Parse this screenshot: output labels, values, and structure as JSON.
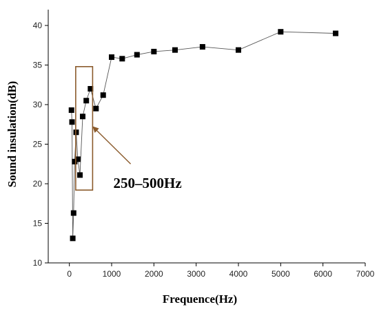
{
  "chart_data": {
    "type": "scatter",
    "title": "",
    "xlabel": "Frequence(Hz)",
    "ylabel": "Sound insulation(dB)",
    "xlim": [
      -500,
      7000
    ],
    "ylim": [
      10,
      42
    ],
    "xticks": [
      0,
      1000,
      2000,
      3000,
      4000,
      5000,
      6000,
      7000
    ],
    "yticks": [
      10,
      15,
      20,
      25,
      30,
      35,
      40
    ],
    "grid": false,
    "legend": "none",
    "series": [
      {
        "connected": true,
        "marker": "square",
        "color": "#000000",
        "x": [
          50,
          63,
          80,
          100,
          125,
          160,
          200,
          250,
          315,
          400,
          500,
          630,
          800,
          1000,
          1250,
          1600,
          2000,
          2500,
          3150,
          4000,
          5000,
          6300
        ],
        "y": [
          29.3,
          27.8,
          13.1,
          16.3,
          22.8,
          26.5,
          23.1,
          21.1,
          28.5,
          30.5,
          32.0,
          29.5,
          31.2,
          36.0,
          35.8,
          36.3,
          36.7,
          36.9,
          37.3,
          36.9,
          39.2,
          39.0
        ]
      }
    ],
    "annotations": [
      {
        "text": "250–500Hz",
        "x": 1850,
        "y": 19.5,
        "box": {
          "x0": 150,
          "x1": 550,
          "y0": 19.2,
          "y1": 34.8,
          "color": "#8a5a2b"
        },
        "arrow": {
          "from": [
            1450,
            22.5
          ],
          "to": [
            560,
            27.2
          ],
          "color": "#8a5a2b"
        }
      }
    ]
  }
}
